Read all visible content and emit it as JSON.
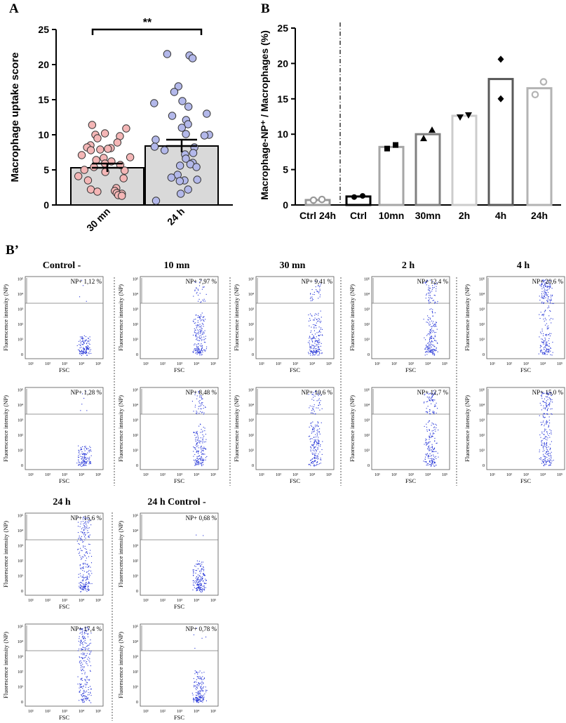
{
  "panels": {
    "a": "A",
    "b": "B",
    "b_prime": "B’"
  },
  "chart_data": [
    {
      "id": "A",
      "type": "bar",
      "ylabel": "Macrophage uptake score",
      "ylim": [
        0,
        25
      ],
      "yticks": [
        "0",
        "5",
        "10",
        "15",
        "20",
        "25"
      ],
      "categories": [
        "30 mn",
        "24 h"
      ],
      "values": [
        5.3,
        8.4
      ],
      "sem": [
        0.6,
        0.9
      ],
      "significance": "**",
      "colors": {
        "bar": "#d9d9d9",
        "dots": [
          "#f4b6b6",
          "#b3b8ea"
        ]
      },
      "points": [
        [
          11.4,
          10.9,
          10.2,
          10.0,
          9.8,
          9.5,
          8.9,
          8.5,
          8.2,
          8.1,
          8.0,
          7.9,
          7.8,
          7.1,
          6.8,
          6.7,
          6.4,
          6.2,
          5.9,
          5.7,
          5.4,
          5.0,
          4.9,
          4.7,
          4.1,
          3.8,
          3.5,
          2.4,
          2.2,
          2.0,
          1.9,
          1.7,
          1.6,
          1.4,
          1.3
        ],
        [
          21.5,
          21.3,
          20.9,
          16.9,
          16.1,
          14.8,
          14.5,
          14.0,
          13.0,
          12.7,
          12.1,
          11.5,
          11.0,
          10.1,
          10.0,
          9.9,
          9.3,
          8.3,
          8.2,
          7.8,
          7.4,
          7.2,
          6.6,
          6.0,
          5.8,
          5.6,
          5.4,
          4.3,
          3.9,
          3.6,
          3.5,
          3.4,
          2.2,
          1.6,
          0.6
        ]
      ]
    },
    {
      "id": "B",
      "type": "bar",
      "ylabel": "Macrophage-NP⁺ / Macrophages (%)",
      "ylim": [
        0,
        25
      ],
      "yticks": [
        "0",
        "5",
        "10",
        "15",
        "20",
        "25"
      ],
      "categories": [
        "Ctrl 24h",
        "Ctrl",
        "10mn",
        "30mn",
        "2h",
        "4h",
        "24h"
      ],
      "values": [
        0.7,
        1.2,
        8.2,
        10.0,
        12.6,
        17.8,
        16.5
      ],
      "points": [
        [
          0.68,
          0.78
        ],
        [
          1.12,
          1.28
        ],
        [
          7.97,
          8.48
        ],
        [
          9.41,
          10.6
        ],
        [
          12.4,
          12.7
        ],
        [
          20.6,
          15.0
        ],
        [
          15.6,
          17.4
        ]
      ],
      "markers": [
        "circle-open",
        "circle-filled",
        "square",
        "triangle-up",
        "triangle-down",
        "diamond",
        "circle-open"
      ],
      "colors": [
        "#999999",
        "#000000",
        "#a6a6a6",
        "#808080",
        "#cccccc",
        "#595959",
        "#b3b3b3"
      ]
    }
  ],
  "flow": {
    "y_axis_label": "Fluorescence intensity (NP)",
    "x_axis_label": "FSC",
    "gate_prefix": "NP+",
    "ticks": [
      "10¹",
      "10²",
      "10³",
      "10⁴",
      "10⁵"
    ],
    "yticks": [
      "0",
      "10¹",
      "10²",
      "10³",
      "10⁴",
      "10⁵"
    ],
    "dot_color": "#1f2fd6",
    "groups": [
      {
        "title": "Control -",
        "values": [
          "1,12 %",
          "1,28 %"
        ],
        "fraction_np": [
          0.0112,
          0.0128
        ],
        "spread": 0.35
      },
      {
        "title": "10 mn",
        "values": [
          "7,97 %",
          "8,48 %"
        ],
        "fraction_np": [
          0.0797,
          0.0848
        ],
        "spread": 0.8
      },
      {
        "title": "30 mn",
        "values": [
          "9,41 %",
          "10,6 %"
        ],
        "fraction_np": [
          0.0941,
          0.106
        ],
        "spread": 0.85
      },
      {
        "title": "2 h",
        "values": [
          "12,4 %",
          "12,7 %"
        ],
        "fraction_np": [
          0.124,
          0.127
        ],
        "spread": 0.9
      },
      {
        "title": "4 h",
        "values": [
          "20,6 %",
          "15,0 %"
        ],
        "fraction_np": [
          0.206,
          0.15
        ],
        "spread": 1.0
      },
      {
        "title": "24 h",
        "values": [
          "15,6 %",
          "17,4 %"
        ],
        "fraction_np": [
          0.156,
          0.174
        ],
        "spread": 1.0
      },
      {
        "title": "24 h Control -",
        "values": [
          "0,68 %",
          "0,78 %"
        ],
        "fraction_np": [
          0.0068,
          0.0078
        ],
        "spread": 0.6
      }
    ]
  }
}
